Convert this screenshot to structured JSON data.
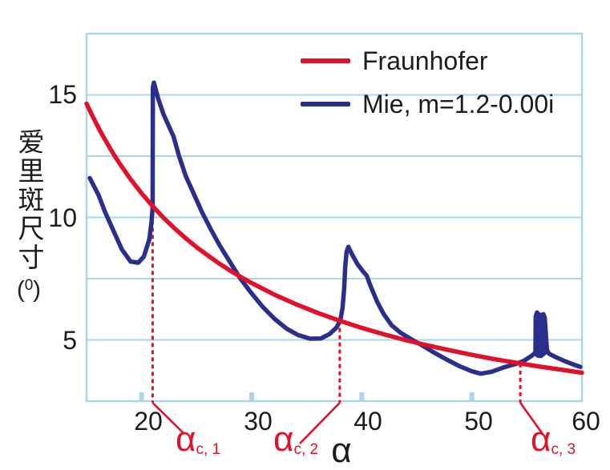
{
  "chart_data": {
    "type": "line",
    "title": "",
    "xlabel": "α",
    "ylabel": "爱里斑尺寸",
    "ylabel_unit": {
      "open": "(",
      "sup": "0",
      "close": ")"
    },
    "xlim": [
      15,
      60
    ],
    "ylim": [
      2.5,
      17.5
    ],
    "x_ticks": [
      20,
      30,
      40,
      50,
      60
    ],
    "y_ticks": [
      15,
      10,
      5
    ],
    "y_gridlines": [
      5,
      7.5,
      10,
      12.5,
      15
    ],
    "grid": "horizontal-only",
    "legend_position": "inside-top-center",
    "series": [
      {
        "name": "Fraunhofer",
        "color": "#e0112b",
        "points": [
          [
            15,
            14.64
          ],
          [
            15.5,
            14.17
          ],
          [
            16,
            13.73
          ],
          [
            16.5,
            13.31
          ],
          [
            17,
            12.92
          ],
          [
            17.5,
            12.55
          ],
          [
            18,
            12.2
          ],
          [
            19,
            11.56
          ],
          [
            20,
            10.98
          ],
          [
            21,
            10.46
          ],
          [
            22,
            9.98
          ],
          [
            23,
            9.55
          ],
          [
            24,
            9.15
          ],
          [
            25,
            8.78
          ],
          [
            26,
            8.45
          ],
          [
            27,
            8.13
          ],
          [
            28,
            7.84
          ],
          [
            29,
            7.57
          ],
          [
            30,
            7.32
          ],
          [
            32,
            6.86
          ],
          [
            34,
            6.46
          ],
          [
            36,
            6.1
          ],
          [
            38,
            5.78
          ],
          [
            40,
            5.49
          ],
          [
            42,
            5.23
          ],
          [
            44,
            4.99
          ],
          [
            46,
            4.77
          ],
          [
            48,
            4.58
          ],
          [
            50,
            4.39
          ],
          [
            52,
            4.22
          ],
          [
            54,
            4.07
          ],
          [
            56,
            3.92
          ],
          [
            58,
            3.79
          ],
          [
            60,
            3.66
          ]
        ]
      },
      {
        "name": "Mie, m=1.2-0.00i",
        "color": "#2b2f8c",
        "points": [
          [
            15.3,
            11.6
          ],
          [
            16.1,
            10.9
          ],
          [
            16.7,
            10.2
          ],
          [
            17.5,
            9.4
          ],
          [
            18.2,
            8.7
          ],
          [
            19,
            8.2
          ],
          [
            19.7,
            8.15
          ],
          [
            20.2,
            8.4
          ],
          [
            20.7,
            9.1
          ],
          [
            20.9,
            9.8
          ],
          [
            21,
            10.4
          ],
          [
            21.02,
            15.3
          ],
          [
            21.12,
            15.5
          ],
          [
            21.5,
            14.85
          ],
          [
            22,
            14.2
          ],
          [
            22.9,
            13.3
          ],
          [
            23.4,
            12.5
          ],
          [
            24,
            11.7
          ],
          [
            24.7,
            11
          ],
          [
            25.5,
            10.2
          ],
          [
            26.3,
            9.5
          ],
          [
            27.1,
            8.85
          ],
          [
            28,
            8.2
          ],
          [
            28.9,
            7.55
          ],
          [
            29.9,
            6.95
          ],
          [
            31,
            6.35
          ],
          [
            32.1,
            5.85
          ],
          [
            33.2,
            5.45
          ],
          [
            34.2,
            5.2
          ],
          [
            35.3,
            5.05
          ],
          [
            36.3,
            5.06
          ],
          [
            37.1,
            5.25
          ],
          [
            37.7,
            5.5
          ],
          [
            38.05,
            5.8
          ],
          [
            38.25,
            6.3
          ],
          [
            38.4,
            7.1
          ],
          [
            38.5,
            8
          ],
          [
            38.62,
            8.6
          ],
          [
            38.78,
            8.8
          ],
          [
            39.1,
            8.5
          ],
          [
            39.6,
            8.1
          ],
          [
            40.1,
            7.8
          ],
          [
            40.45,
            7.62
          ],
          [
            40.8,
            7.2
          ],
          [
            41.4,
            6.55
          ],
          [
            42,
            6.05
          ],
          [
            42.7,
            5.6
          ],
          [
            43.5,
            5.3
          ],
          [
            44.4,
            5.05
          ],
          [
            45.4,
            4.8
          ],
          [
            46.5,
            4.5
          ],
          [
            47.7,
            4.2
          ],
          [
            48.9,
            3.92
          ],
          [
            50,
            3.72
          ],
          [
            50.8,
            3.62
          ],
          [
            51.8,
            3.7
          ],
          [
            52.9,
            3.88
          ],
          [
            54,
            4.02
          ],
          [
            54.7,
            4.14
          ],
          [
            55.4,
            4.34
          ],
          [
            55.78,
            4.48
          ],
          [
            55.8,
            5.95
          ],
          [
            55.92,
            6.12
          ],
          [
            56.05,
            5.95
          ],
          [
            56.2,
            6.03
          ],
          [
            56.35,
            5.94
          ],
          [
            56.5,
            6.05
          ],
          [
            56.62,
            5.9
          ],
          [
            56.82,
            4.6
          ],
          [
            57,
            4.44
          ],
          [
            57.6,
            4.3
          ],
          [
            58.4,
            4.14
          ],
          [
            59.2,
            4
          ],
          [
            59.85,
            3.9
          ]
        ]
      }
    ],
    "mie_spike_fill": [
      [
        55.76,
        4.4
      ],
      [
        55.79,
        5.98
      ],
      [
        55.92,
        6.13
      ],
      [
        56.06,
        5.96
      ],
      [
        56.2,
        6.04
      ],
      [
        56.34,
        5.94
      ],
      [
        56.5,
        6.06
      ],
      [
        56.62,
        5.95
      ],
      [
        56.84,
        4.5
      ],
      [
        56.3,
        4.3
      ],
      [
        55.95,
        4.32
      ]
    ],
    "critical_points": [
      {
        "alpha": 21.0,
        "dash_top_value": 10.46,
        "label": "α",
        "sub": "c, 1"
      },
      {
        "alpha": 38.0,
        "dash_top_value": 5.78,
        "label": "α",
        "sub": "c, 2"
      },
      {
        "alpha": 54.4,
        "dash_top_value": 4.04,
        "label": "α",
        "sub": "c, 3"
      }
    ],
    "colors": {
      "grid_and_frame": "#a9d6e8",
      "tick_mark": "#a9d6e8",
      "critical_red": "#e0112b",
      "text": "#1c1c1c",
      "background": "#ffffff"
    }
  }
}
